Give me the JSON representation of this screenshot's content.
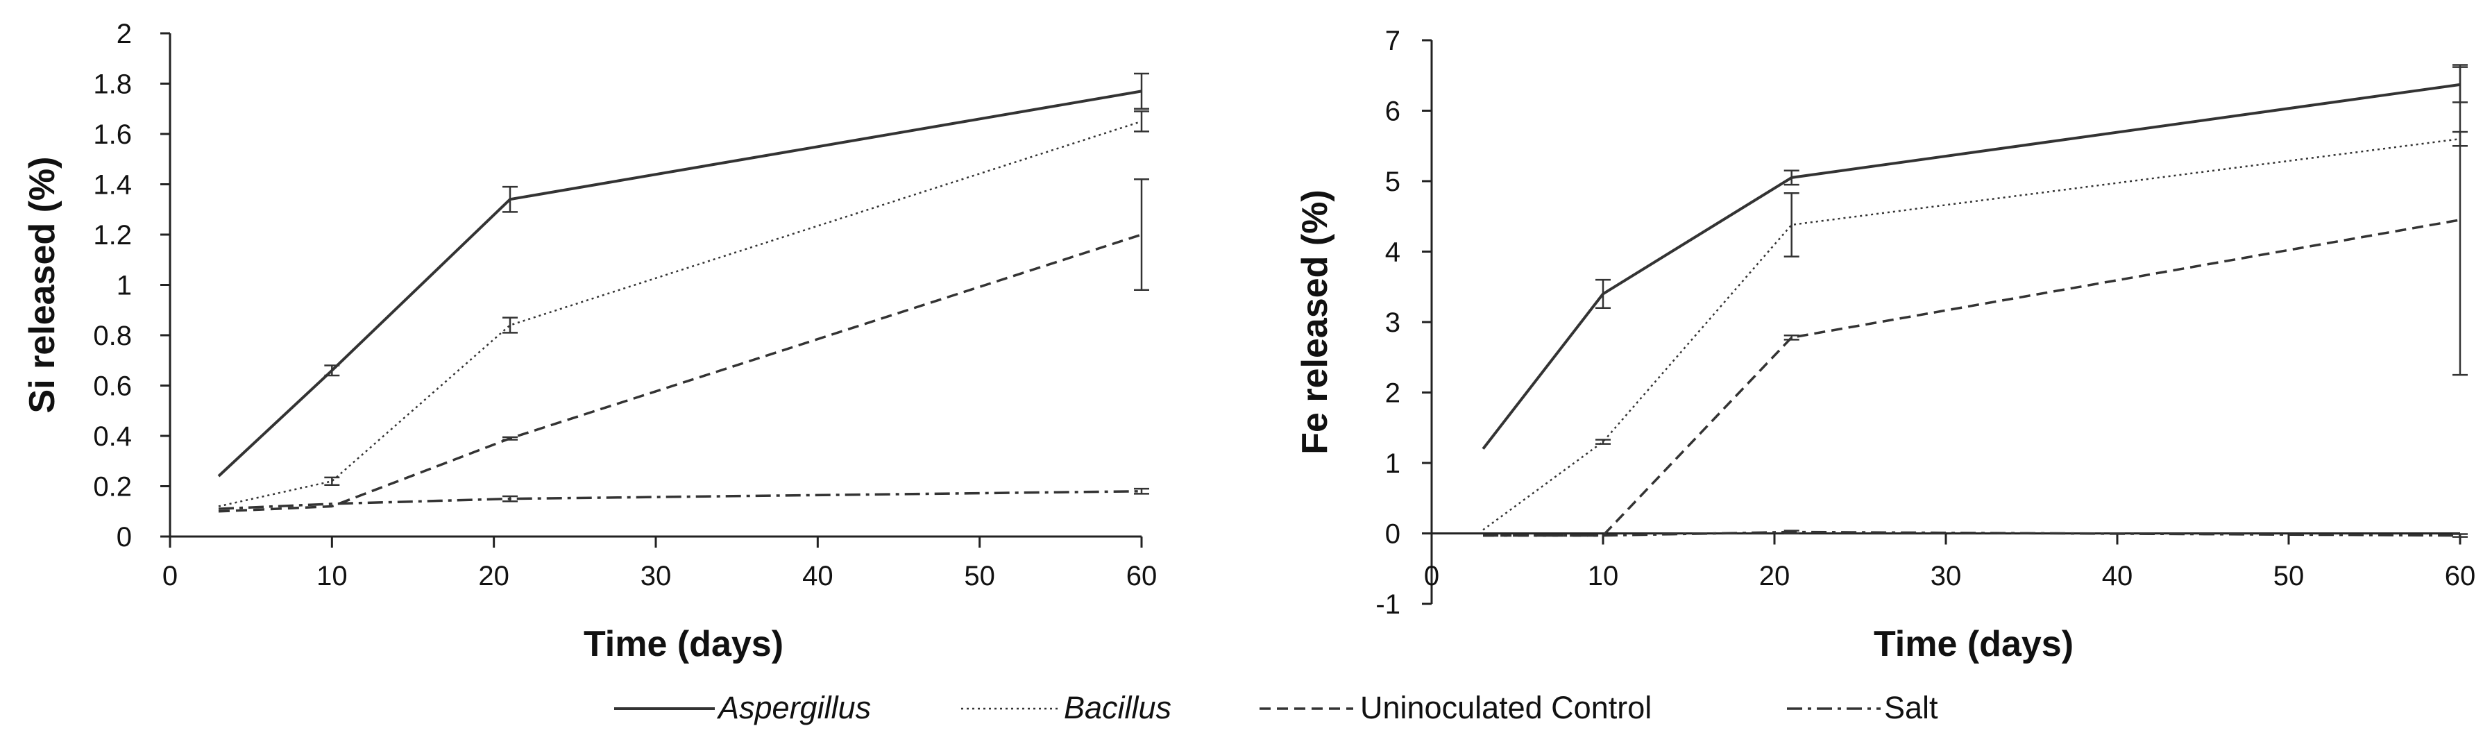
{
  "chart_data": [
    {
      "type": "line",
      "xlabel": "Time (days)",
      "ylabel": "Si released (%)",
      "xlim": [
        0,
        60
      ],
      "ylim": [
        0,
        2
      ],
      "xticks": [
        0,
        10,
        20,
        30,
        40,
        50,
        60
      ],
      "yticks": [
        0,
        0.2,
        0.4,
        0.6,
        0.8,
        1,
        1.2,
        1.4,
        1.6,
        1.8,
        2
      ],
      "grid": false,
      "error_bars": true,
      "series": [
        {
          "name": "Aspergillus",
          "x": [
            3,
            10,
            21,
            60
          ],
          "y": [
            0.24,
            0.66,
            1.34,
            1.77
          ],
          "err": [
            0,
            0.02,
            0.05,
            0.07
          ]
        },
        {
          "name": "Bacillus",
          "x": [
            3,
            10,
            21,
            60
          ],
          "y": [
            0.12,
            0.22,
            0.84,
            1.65
          ],
          "err": [
            0,
            0.015,
            0.03,
            0.04
          ]
        },
        {
          "name": "Uninoculated Control",
          "x": [
            3,
            10,
            21,
            60
          ],
          "y": [
            0.1,
            0.12,
            0.39,
            1.2
          ],
          "err": [
            0,
            0,
            0.005,
            0.22
          ]
        },
        {
          "name": "Salt",
          "x": [
            3,
            10,
            21,
            60
          ],
          "y": [
            0.11,
            0.13,
            0.15,
            0.18
          ],
          "err": [
            0,
            0,
            0.01,
            0.01
          ]
        }
      ]
    },
    {
      "type": "line",
      "xlabel": "Time (days)",
      "ylabel": "Fe released (%)",
      "xlim": [
        0,
        60
      ],
      "ylim": [
        -1,
        7
      ],
      "xticks": [
        0,
        10,
        20,
        30,
        40,
        50,
        60
      ],
      "yticks": [
        -1,
        0,
        1,
        2,
        3,
        4,
        5,
        6,
        7
      ],
      "grid": false,
      "error_bars": true,
      "series": [
        {
          "name": "Aspergillus",
          "x": [
            3,
            10,
            21,
            60
          ],
          "y": [
            1.2,
            3.4,
            5.05,
            6.37
          ],
          "err": [
            0,
            0.2,
            0.1,
            0.25
          ]
        },
        {
          "name": "Bacillus",
          "x": [
            3,
            10,
            21,
            60
          ],
          "y": [
            0.05,
            1.3,
            4.38,
            5.6
          ],
          "err": [
            0,
            0.03,
            0.45,
            0.1
          ]
        },
        {
          "name": "Uninoculated Control",
          "x": [
            3,
            10,
            21,
            60
          ],
          "y": [
            -0.03,
            -0.03,
            2.78,
            4.45
          ],
          "err": [
            0,
            0,
            0.03,
            2.2
          ]
        },
        {
          "name": "Salt",
          "x": [
            3,
            10,
            21,
            60
          ],
          "y": [
            -0.03,
            -0.03,
            0.02,
            -0.03
          ],
          "err": [
            0,
            0,
            0.02,
            0.02
          ]
        }
      ]
    }
  ],
  "legend": {
    "placement": "bottom",
    "items": [
      {
        "label": "Aspergillus",
        "italic": true,
        "dash": "solid"
      },
      {
        "label": "Bacillus",
        "italic": true,
        "dash": "dotted"
      },
      {
        "label": "Uninoculated Control",
        "italic": false,
        "dash": "dashed"
      },
      {
        "label": "Salt",
        "italic": false,
        "dash": "dashdot"
      }
    ]
  },
  "colors": {
    "lines": "#333333",
    "axes": "#222222",
    "background": "#ffffff"
  }
}
